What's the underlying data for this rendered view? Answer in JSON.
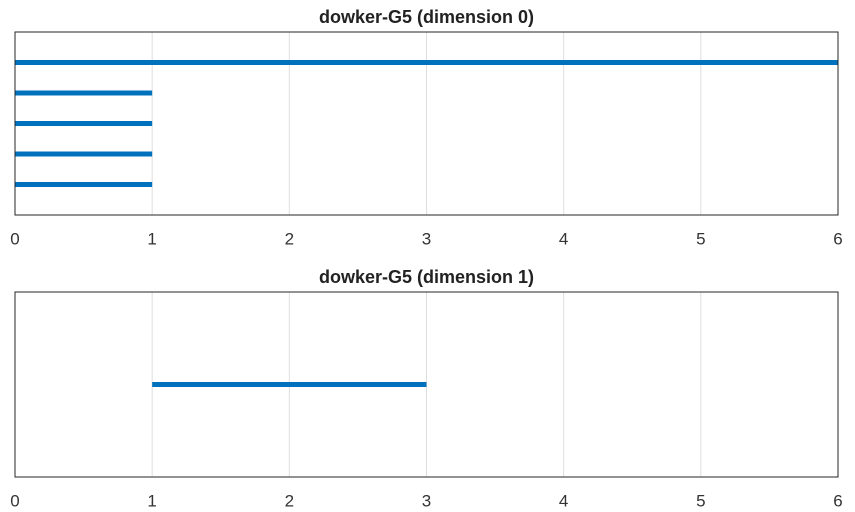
{
  "chart_data": [
    {
      "type": "barcode",
      "title": "dowker-G5 (dimension 0)",
      "color": "#0072bd",
      "intervals": [
        [
          0,
          6
        ],
        [
          0,
          1
        ],
        [
          0,
          1
        ],
        [
          0,
          1
        ],
        [
          0,
          1
        ]
      ],
      "xlim": [
        0,
        6
      ],
      "xticks": [
        0,
        1,
        2,
        3,
        4,
        5,
        6
      ],
      "grid": true
    },
    {
      "type": "barcode",
      "title": "dowker-G5 (dimension 1)",
      "color": "#0072bd",
      "intervals": [
        [
          1,
          3
        ]
      ],
      "xlim": [
        0,
        6
      ],
      "xticks": [
        0,
        1,
        2,
        3,
        4,
        5,
        6
      ],
      "grid": true
    }
  ]
}
